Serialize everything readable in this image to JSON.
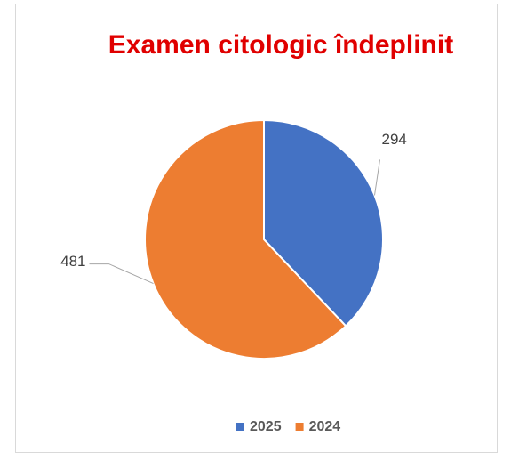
{
  "chart_data": {
    "type": "pie",
    "title": "Examen citologic îndeplinit",
    "categories": [
      "2025",
      "2024"
    ],
    "values": [
      294,
      481
    ],
    "colors": [
      "#4472c4",
      "#ed7d31"
    ],
    "legend": "bottom"
  }
}
